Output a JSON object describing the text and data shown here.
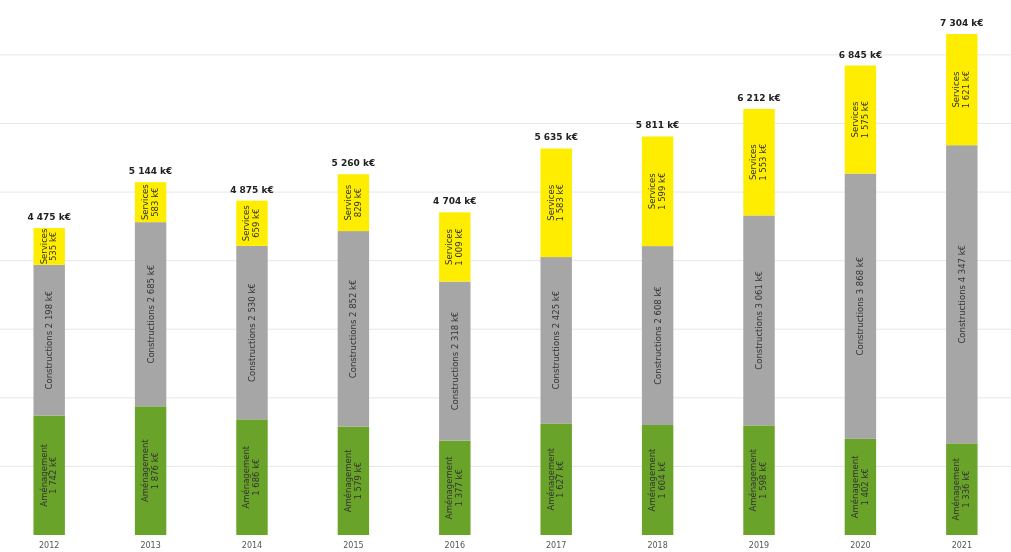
{
  "chart_data": {
    "type": "bar",
    "stacked": true,
    "categories": [
      "2012",
      "2013",
      "2014",
      "2015",
      "2016",
      "2017",
      "2018",
      "2019",
      "2020",
      "2021"
    ],
    "series": [
      {
        "name": "Aménagement",
        "color": "#6aa329",
        "values": [
          1742,
          1876,
          1686,
          1579,
          1377,
          1627,
          1604,
          1598,
          1402,
          1336
        ],
        "value_labels": [
          "1 742 k€",
          "1 876 k€",
          "1 686 k€",
          "1 579 k€",
          "1 377 k€",
          "1 627 k€",
          "1 604 k€",
          "1 598 k€",
          "1 402 k€",
          "1 336 k€"
        ]
      },
      {
        "name": "Constructions",
        "color": "#a6a6a6",
        "values": [
          2198,
          2685,
          2530,
          2852,
          2318,
          2425,
          2608,
          3061,
          3868,
          4347
        ],
        "value_labels": [
          "2 198 k€",
          "2 685 k€",
          "2 530 k€",
          "2 852 k€",
          "2 318 k€",
          "2 425 k€",
          "2 608 k€",
          "3 061 k€",
          "3 868 k€",
          "4 347 k€"
        ]
      },
      {
        "name": "Services",
        "color": "#ffed00",
        "values": [
          535,
          583,
          659,
          829,
          1009,
          1583,
          1599,
          1553,
          1575,
          1621
        ],
        "value_labels": [
          "535 k€",
          "583 k€",
          "659 k€",
          "829 k€",
          "1 009 k€",
          "1 583 k€",
          "1 599 k€",
          "1 553 k€",
          "1 575 k€",
          "1 621 k€"
        ]
      }
    ],
    "totals": [
      "4 475 k€",
      "5 144 k€",
      "4 875 k€",
      "5 260 k€",
      "4 704 k€",
      "5 635 k€",
      "5 811 k€",
      "6 212 k€",
      "6 845 k€",
      "7 304 k€"
    ],
    "ylim": [
      0,
      7800
    ],
    "yticks": [
      {
        "value": 1000,
        "label": null
      },
      {
        "value": 2000,
        "label": null
      },
      {
        "value": 3000,
        "label": null
      },
      {
        "value": 4000,
        "label": null
      },
      {
        "value": 5000,
        "label": null
      },
      {
        "value": 6000,
        "label": null
      },
      {
        "value": 7000,
        "label": null
      }
    ],
    "tick_labels": "x",
    "grid": "y",
    "legend": false
  }
}
